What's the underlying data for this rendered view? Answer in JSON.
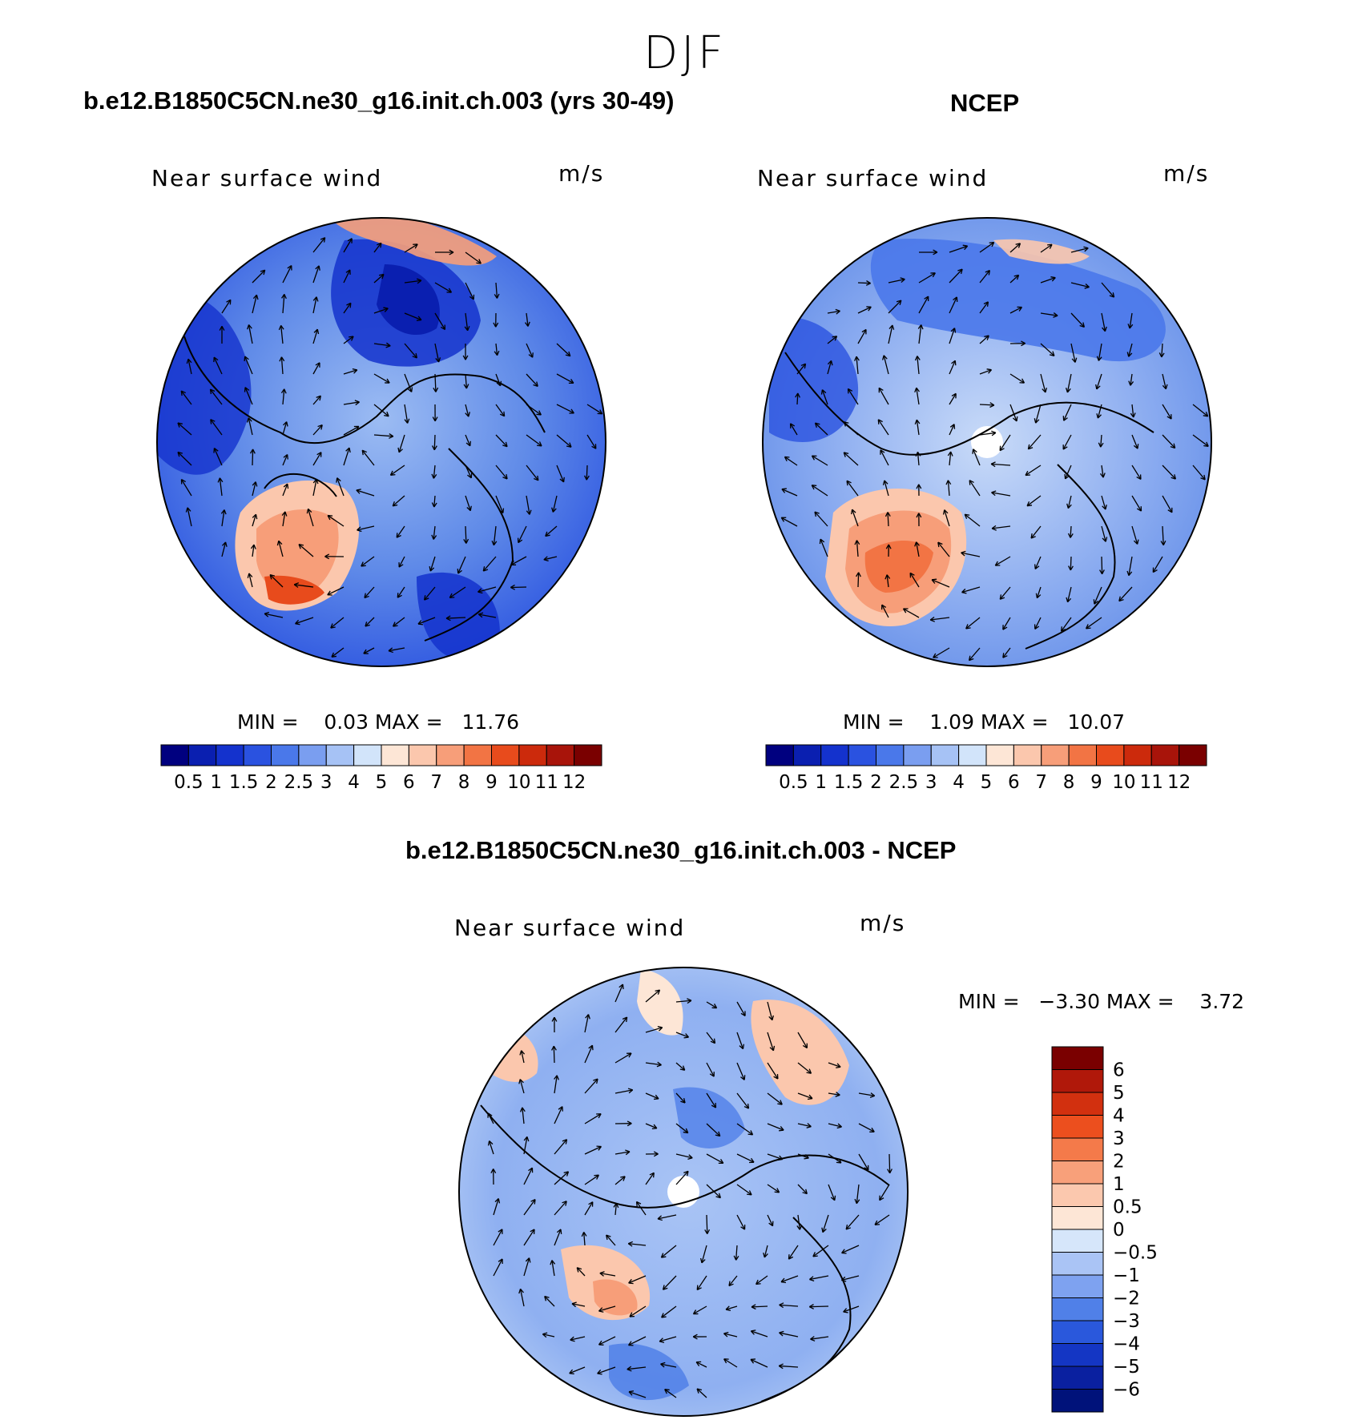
{
  "figure": {
    "season": "DJF",
    "panels": [
      {
        "id": "model",
        "title": "b.e12.B1850C5CN.ne30_g16.init.ch.003 (yrs 30-49)",
        "variable_label": "Near surface wind",
        "units": "m/s",
        "min_max_text": "MIN =    0.03 MAX =   11.76"
      },
      {
        "id": "obs",
        "title": "NCEP",
        "variable_label": "Near surface wind",
        "units": "m/s",
        "min_max_text": "MIN =    1.09 MAX =   10.07"
      },
      {
        "id": "diff",
        "title": "b.e12.B1850C5CN.ne30_g16.init.ch.003 - NCEP",
        "variable_label": "Near surface wind",
        "units": "m/s",
        "min_max_text": "MIN =   −3.30 MAX =    3.72"
      }
    ],
    "colorbar_abs": {
      "labels": [
        "0.5",
        "1",
        "1.5",
        "2",
        "2.5",
        "3",
        "4",
        "5",
        "6",
        "7",
        "8",
        "9",
        "10",
        "11",
        "12"
      ],
      "colors": [
        "#00007f",
        "#0a1fb0",
        "#1432cd",
        "#2a52e0",
        "#4a78ea",
        "#7a9ef0",
        "#a6c2f5",
        "#d2e4fa",
        "#fde6d6",
        "#fbc7ad",
        "#f79e79",
        "#f27444",
        "#e84b1c",
        "#cc2a0c",
        "#a8140a",
        "#7a0000"
      ]
    },
    "colorbar_diff": {
      "labels": [
        "6",
        "5",
        "4",
        "3",
        "2",
        "1",
        "0.5",
        "0",
        "−0.5",
        "−1",
        "−2",
        "−3",
        "−4",
        "−5",
        "−6"
      ],
      "colors": [
        "#7a0000",
        "#b0180a",
        "#d2300f",
        "#ec4f1e",
        "#f47a4a",
        "#f8a07a",
        "#fbc8ae",
        "#fde6d6",
        "#d6e6fa",
        "#aac4f5",
        "#7ea2f0",
        "#5080e8",
        "#2a58dc",
        "#1436c4",
        "#0a20a0",
        "#00127a"
      ]
    }
  }
}
